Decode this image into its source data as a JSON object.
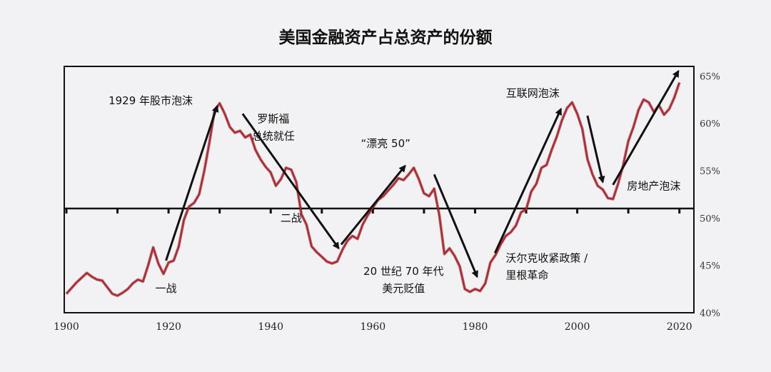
{
  "chart_data": {
    "type": "line",
    "title": "美国金融资产占总资产的份额",
    "xlabel": "",
    "ylabel": "",
    "xlim": [
      1900,
      2022
    ],
    "ylim": [
      40,
      66
    ],
    "x_ticks": [
      "1900",
      "1920",
      "1940",
      "1960",
      "1980",
      "2000",
      "2020"
    ],
    "y_ticks": [
      "40%",
      "45%",
      "50%",
      "55%",
      "60%",
      "65%"
    ],
    "reference_line": 51,
    "series": [
      {
        "color": "#c41e2a",
        "points": [
          [
            1900,
            42.0
          ],
          [
            1902,
            43.2
          ],
          [
            1904,
            44.2
          ],
          [
            1905,
            43.8
          ],
          [
            1906,
            43.5
          ],
          [
            1907,
            43.4
          ],
          [
            1908,
            42.7
          ],
          [
            1909,
            42.0
          ],
          [
            1910,
            41.8
          ],
          [
            1911,
            42.1
          ],
          [
            1912,
            42.5
          ],
          [
            1913,
            43.1
          ],
          [
            1914,
            43.5
          ],
          [
            1915,
            43.3
          ],
          [
            1916,
            45.0
          ],
          [
            1917,
            46.9
          ],
          [
            1918,
            45.2
          ],
          [
            1919,
            44.1
          ],
          [
            1920,
            45.3
          ],
          [
            1921,
            45.5
          ],
          [
            1922,
            47.0
          ],
          [
            1923,
            49.8
          ],
          [
            1924,
            51.2
          ],
          [
            1925,
            51.6
          ],
          [
            1926,
            52.5
          ],
          [
            1927,
            55.0
          ],
          [
            1928,
            58.0
          ],
          [
            1929,
            61.3
          ],
          [
            1930,
            62.1
          ],
          [
            1931,
            61.0
          ],
          [
            1932,
            59.6
          ],
          [
            1933,
            59.0
          ],
          [
            1934,
            59.2
          ],
          [
            1935,
            58.5
          ],
          [
            1936,
            58.8
          ],
          [
            1937,
            57.2
          ],
          [
            1938,
            56.2
          ],
          [
            1939,
            55.4
          ],
          [
            1940,
            54.8
          ],
          [
            1941,
            53.4
          ],
          [
            1942,
            54.1
          ],
          [
            1943,
            55.3
          ],
          [
            1944,
            55.1
          ],
          [
            1945,
            53.8
          ],
          [
            1946,
            50.4
          ],
          [
            1947,
            49.3
          ],
          [
            1948,
            47.0
          ],
          [
            1949,
            46.4
          ],
          [
            1950,
            45.9
          ],
          [
            1951,
            45.4
          ],
          [
            1952,
            45.2
          ],
          [
            1953,
            45.4
          ],
          [
            1954,
            46.6
          ],
          [
            1955,
            47.6
          ],
          [
            1956,
            48.1
          ],
          [
            1957,
            47.8
          ],
          [
            1958,
            49.3
          ],
          [
            1959,
            50.3
          ],
          [
            1960,
            51.1
          ],
          [
            1961,
            51.9
          ],
          [
            1962,
            52.3
          ],
          [
            1963,
            52.9
          ],
          [
            1964,
            53.5
          ],
          [
            1965,
            54.2
          ],
          [
            1966,
            54.0
          ],
          [
            1967,
            54.6
          ],
          [
            1968,
            55.3
          ],
          [
            1969,
            54.1
          ],
          [
            1970,
            52.6
          ],
          [
            1971,
            52.3
          ],
          [
            1972,
            53.1
          ],
          [
            1973,
            50.3
          ],
          [
            1974,
            46.2
          ],
          [
            1975,
            46.8
          ],
          [
            1976,
            46.0
          ],
          [
            1977,
            44.9
          ],
          [
            1978,
            42.5
          ],
          [
            1979,
            42.2
          ],
          [
            1980,
            42.5
          ],
          [
            1981,
            42.3
          ],
          [
            1982,
            43.1
          ],
          [
            1983,
            45.3
          ],
          [
            1984,
            46.1
          ],
          [
            1985,
            47.2
          ],
          [
            1986,
            48.1
          ],
          [
            1987,
            48.5
          ],
          [
            1988,
            49.2
          ],
          [
            1989,
            50.6
          ],
          [
            1990,
            50.9
          ],
          [
            1991,
            52.8
          ],
          [
            1992,
            53.6
          ],
          [
            1993,
            55.3
          ],
          [
            1994,
            55.6
          ],
          [
            1995,
            57.2
          ],
          [
            1996,
            58.6
          ],
          [
            1997,
            60.3
          ],
          [
            1998,
            61.6
          ],
          [
            1999,
            62.2
          ],
          [
            2000,
            61.0
          ],
          [
            2001,
            59.4
          ],
          [
            2002,
            56.2
          ],
          [
            2003,
            54.6
          ],
          [
            2004,
            53.4
          ],
          [
            2005,
            53.0
          ],
          [
            2006,
            52.1
          ],
          [
            2007,
            52.0
          ],
          [
            2008,
            53.6
          ],
          [
            2009,
            55.6
          ],
          [
            2010,
            58.1
          ],
          [
            2011,
            59.6
          ],
          [
            2012,
            61.4
          ],
          [
            2013,
            62.5
          ],
          [
            2014,
            62.2
          ],
          [
            2015,
            61.2
          ],
          [
            2016,
            61.9
          ],
          [
            2017,
            60.9
          ],
          [
            2018,
            61.5
          ],
          [
            2019,
            62.7
          ],
          [
            2020,
            64.3
          ]
        ]
      }
    ],
    "annotations": [
      {
        "lines": [
          "1929 年股市泡沫"
        ],
        "at": [
          1916.5,
          62.0
        ],
        "anchor": "middle"
      },
      {
        "lines": [
          "罗斯福",
          "总统就任"
        ],
        "at": [
          1940.5,
          60.1
        ],
        "anchor": "middle"
      },
      {
        "lines": [
          "二战"
        ],
        "at": [
          1944.0,
          49.6
        ],
        "anchor": "middle"
      },
      {
        "lines": [
          "“漂亮 50”"
        ],
        "at": [
          1962.5,
          57.5
        ],
        "anchor": "middle"
      },
      {
        "lines": [
          "20 世纪 70 年代",
          "美元贬值"
        ],
        "at": [
          1966.0,
          44.0
        ],
        "anchor": "middle"
      },
      {
        "lines": [
          "互联网泡沫"
        ],
        "at": [
          1991.3,
          62.8
        ],
        "anchor": "middle"
      },
      {
        "lines": [
          "沃尔克收紧政策 /",
          "里根革命"
        ],
        "at": [
          1986.0,
          45.4
        ],
        "anchor": "start"
      },
      {
        "lines": [
          "房地产泡沫"
        ],
        "at": [
          2015.0,
          53.0
        ],
        "anchor": "middle"
      },
      {
        "lines": [
          "一战"
        ],
        "at": [
          1919.5,
          42.2
        ],
        "anchor": "middle"
      }
    ],
    "arrows": [
      {
        "from": [
          1919.5,
          45.5
        ],
        "to": [
          1929.5,
          61.8
        ]
      },
      {
        "from": [
          1934.5,
          61.0
        ],
        "to": [
          1953.3,
          46.8
        ]
      },
      {
        "from": [
          1953.8,
          47.2
        ],
        "to": [
          1966.3,
          55.5
        ]
      },
      {
        "from": [
          1972.0,
          54.6
        ],
        "to": [
          1980.4,
          43.8
        ]
      },
      {
        "from": [
          1983.9,
          46.3
        ],
        "to": [
          1996.8,
          61.5
        ]
      },
      {
        "from": [
          2002.0,
          60.8
        ],
        "to": [
          2005.0,
          53.8
        ]
      },
      {
        "from": [
          2007.0,
          53.5
        ],
        "to": [
          2019.8,
          65.5
        ]
      }
    ]
  }
}
